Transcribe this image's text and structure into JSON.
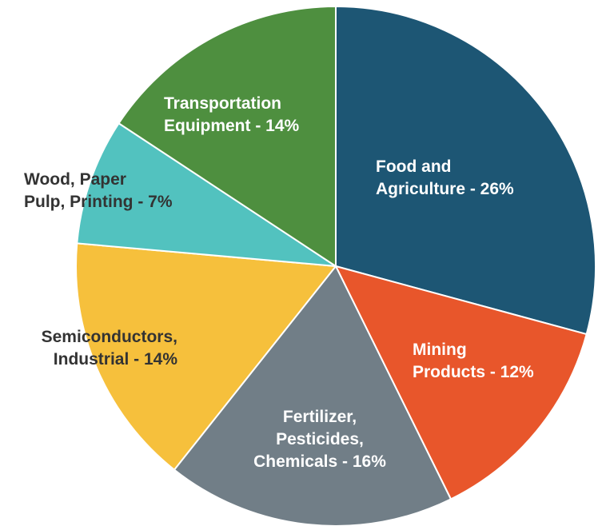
{
  "chart_data": {
    "type": "pie",
    "categories": [
      "Food and\nAgriculture - 26%",
      "Mining\nProducts - 12%",
      "Fertilizer,\nPesticides,\nChemicals - 16%",
      "Semiconductors,\nIndustrial - 14%",
      "Wood, Paper\nPulp, Printing - 7%",
      "Transportation\nEquipment - 14%"
    ],
    "values": [
      26,
      12,
      16,
      14,
      7,
      14
    ],
    "colors": [
      "#1d5674",
      "#e8562b",
      "#717e87",
      "#f6c03c",
      "#52c2bf",
      "#4e8f3f"
    ]
  }
}
